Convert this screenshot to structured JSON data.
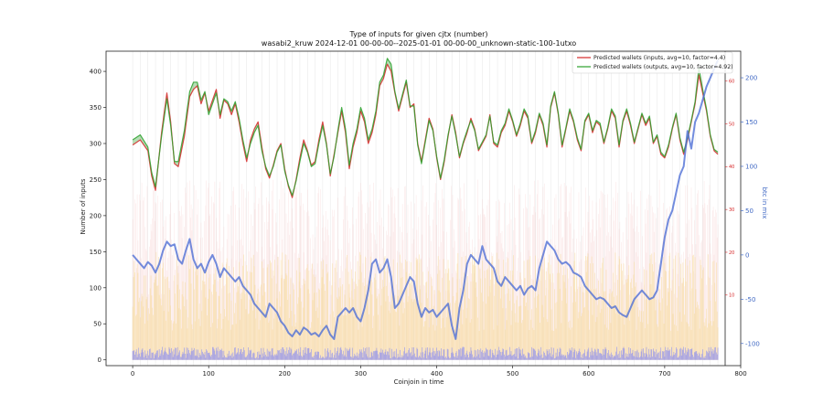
{
  "chart_data": {
    "type": "line",
    "title": "Type of inputs for given cjtx (number)",
    "subtitle": "wasabi2_kruw 2024-12-01 00-00-00--2025-01-01 00-00-00_unknown-static-100-1utxo",
    "xlabel": "Coinjoin in time",
    "ylabel": "Number of inputs",
    "ylabel_right": "btc in mix",
    "xlim": [
      -35,
      800
    ],
    "ylim": [
      -8,
      428
    ],
    "ylim_right_red": [
      -6.5,
      67
    ],
    "ylim_right_blue": [
      -125,
      230
    ],
    "x_ticks": [
      0,
      100,
      200,
      300,
      400,
      500,
      600,
      700,
      800
    ],
    "y_ticks": [
      0,
      50,
      100,
      150,
      200,
      250,
      300,
      350,
      400
    ],
    "red_axis_ticks": [
      10,
      20,
      30,
      40,
      50,
      60
    ],
    "blue_axis_ticks": [
      -100,
      -50,
      0,
      50,
      100,
      150,
      200
    ],
    "grid": "vertical lines",
    "legend_position": "top-right",
    "series": [
      {
        "name": "Predicted wallets (inputs, avg=10, factor=4.4)",
        "color": "#d62728",
        "axis": "left",
        "x": [
          0,
          10,
          20,
          25,
          30,
          38,
          45,
          50,
          55,
          60,
          68,
          75,
          80,
          85,
          90,
          95,
          100,
          105,
          110,
          115,
          120,
          125,
          130,
          135,
          140,
          145,
          150,
          155,
          160,
          165,
          170,
          175,
          180,
          185,
          190,
          195,
          200,
          205,
          210,
          215,
          220,
          225,
          230,
          235,
          240,
          245,
          250,
          255,
          260,
          265,
          270,
          275,
          280,
          285,
          290,
          295,
          300,
          305,
          310,
          315,
          320,
          325,
          330,
          335,
          340,
          345,
          350,
          355,
          360,
          365,
          370,
          375,
          380,
          385,
          390,
          395,
          400,
          405,
          410,
          415,
          420,
          425,
          430,
          435,
          440,
          445,
          450,
          455,
          460,
          465,
          470,
          475,
          480,
          485,
          490,
          495,
          500,
          505,
          510,
          515,
          520,
          525,
          530,
          535,
          540,
          545,
          550,
          555,
          560,
          565,
          570,
          575,
          580,
          585,
          590,
          595,
          600,
          605,
          610,
          615,
          620,
          625,
          630,
          635,
          640,
          645,
          650,
          655,
          660,
          665,
          670,
          675,
          680,
          685,
          690,
          695,
          700,
          705,
          710,
          715,
          720,
          725,
          730,
          735,
          740,
          745,
          750,
          755,
          760,
          765,
          770
        ],
        "values": [
          298,
          305,
          290,
          255,
          235,
          315,
          370,
          330,
          272,
          268,
          310,
          365,
          375,
          380,
          355,
          370,
          345,
          360,
          375,
          335,
          360,
          355,
          340,
          355,
          330,
          300,
          275,
          305,
          320,
          330,
          295,
          265,
          252,
          270,
          290,
          300,
          265,
          240,
          225,
          250,
          280,
          305,
          290,
          270,
          275,
          305,
          330,
          300,
          255,
          285,
          315,
          345,
          315,
          265,
          295,
          315,
          345,
          330,
          300,
          315,
          340,
          380,
          390,
          410,
          400,
          370,
          345,
          365,
          385,
          350,
          355,
          300,
          275,
          305,
          335,
          320,
          280,
          250,
          275,
          310,
          340,
          315,
          280,
          300,
          315,
          335,
          320,
          290,
          300,
          310,
          340,
          300,
          295,
          315,
          325,
          345,
          330,
          310,
          325,
          345,
          335,
          300,
          315,
          340,
          325,
          295,
          350,
          370,
          340,
          295,
          320,
          345,
          330,
          305,
          290,
          330,
          340,
          315,
          330,
          325,
          300,
          320,
          345,
          335,
          295,
          330,
          345,
          325,
          300,
          320,
          340,
          325,
          335,
          300,
          310,
          285,
          280,
          295,
          320,
          340,
          305,
          285,
          305,
          330,
          355,
          395,
          370,
          345,
          310,
          290,
          285
        ],
        "markers": "none"
      },
      {
        "name": "Predicted wallets (outputs, avg=10, factor=4.92)",
        "color": "#2ca02c",
        "axis": "left",
        "x": [
          0,
          10,
          20,
          25,
          30,
          38,
          45,
          50,
          55,
          60,
          68,
          75,
          80,
          85,
          90,
          95,
          100,
          105,
          110,
          115,
          120,
          125,
          130,
          135,
          140,
          145,
          150,
          155,
          160,
          165,
          170,
          175,
          180,
          185,
          190,
          195,
          200,
          205,
          210,
          215,
          220,
          225,
          230,
          235,
          240,
          245,
          250,
          255,
          260,
          265,
          270,
          275,
          280,
          285,
          290,
          295,
          300,
          305,
          310,
          315,
          320,
          325,
          330,
          335,
          340,
          345,
          350,
          355,
          360,
          365,
          370,
          375,
          380,
          385,
          390,
          395,
          400,
          405,
          410,
          415,
          420,
          425,
          430,
          435,
          440,
          445,
          450,
          455,
          460,
          465,
          470,
          475,
          480,
          485,
          490,
          495,
          500,
          505,
          510,
          515,
          520,
          525,
          530,
          535,
          540,
          545,
          550,
          555,
          560,
          565,
          570,
          575,
          580,
          585,
          590,
          595,
          600,
          605,
          610,
          615,
          620,
          625,
          630,
          635,
          640,
          645,
          650,
          655,
          660,
          665,
          670,
          675,
          680,
          685,
          690,
          695,
          700,
          705,
          710,
          715,
          720,
          725,
          730,
          735,
          740,
          745,
          750,
          755,
          760,
          765,
          770
        ],
        "values": [
          305,
          312,
          295,
          260,
          240,
          310,
          362,
          325,
          275,
          275,
          318,
          372,
          385,
          385,
          360,
          372,
          340,
          355,
          370,
          340,
          362,
          358,
          345,
          358,
          335,
          305,
          280,
          300,
          315,
          325,
          290,
          268,
          255,
          268,
          288,
          298,
          262,
          242,
          228,
          248,
          275,
          300,
          288,
          268,
          272,
          300,
          325,
          298,
          258,
          282,
          318,
          350,
          320,
          270,
          300,
          320,
          350,
          335,
          305,
          320,
          345,
          385,
          395,
          418,
          410,
          372,
          348,
          368,
          388,
          352,
          352,
          298,
          272,
          302,
          332,
          318,
          282,
          252,
          278,
          312,
          338,
          312,
          282,
          302,
          318,
          332,
          318,
          292,
          302,
          312,
          338,
          302,
          298,
          318,
          328,
          348,
          332,
          312,
          328,
          348,
          338,
          302,
          318,
          342,
          328,
          298,
          352,
          372,
          342,
          298,
          322,
          348,
          332,
          308,
          292,
          332,
          342,
          318,
          332,
          328,
          302,
          322,
          348,
          338,
          298,
          332,
          348,
          328,
          302,
          322,
          342,
          328,
          338,
          302,
          312,
          288,
          282,
          298,
          322,
          342,
          308,
          288,
          308,
          332,
          358,
          405,
          375,
          348,
          312,
          292,
          288
        ],
        "markers": "none"
      },
      {
        "name": "btc in mix",
        "color": "#4f6fd6",
        "axis": "right-blue",
        "x": [
          0,
          5,
          10,
          15,
          20,
          25,
          30,
          35,
          40,
          45,
          50,
          55,
          60,
          65,
          70,
          75,
          80,
          85,
          90,
          95,
          100,
          105,
          110,
          115,
          120,
          125,
          130,
          135,
          140,
          145,
          150,
          155,
          160,
          165,
          170,
          175,
          180,
          185,
          190,
          195,
          200,
          205,
          210,
          215,
          220,
          225,
          230,
          235,
          240,
          245,
          250,
          255,
          260,
          265,
          270,
          275,
          280,
          285,
          290,
          295,
          300,
          305,
          310,
          315,
          320,
          325,
          330,
          335,
          340,
          345,
          350,
          355,
          360,
          365,
          370,
          375,
          380,
          385,
          390,
          395,
          400,
          405,
          410,
          415,
          420,
          425,
          430,
          435,
          440,
          445,
          450,
          455,
          460,
          465,
          470,
          475,
          480,
          485,
          490,
          495,
          500,
          505,
          510,
          515,
          520,
          525,
          530,
          535,
          540,
          545,
          550,
          555,
          560,
          565,
          570,
          575,
          580,
          585,
          590,
          595,
          600,
          605,
          610,
          615,
          620,
          625,
          630,
          635,
          640,
          645,
          650,
          655,
          660,
          665,
          670,
          675,
          680,
          685,
          690,
          695,
          700,
          705,
          710,
          715,
          720,
          725,
          730,
          735,
          740,
          745,
          750,
          755,
          760,
          765,
          770
        ],
        "values": [
          0,
          -5,
          -10,
          -15,
          -8,
          -12,
          -20,
          -10,
          5,
          15,
          10,
          12,
          -5,
          -10,
          5,
          18,
          -5,
          -15,
          -10,
          -20,
          -8,
          0,
          -10,
          -25,
          -15,
          -20,
          -25,
          -30,
          -25,
          -35,
          -40,
          -45,
          -55,
          -60,
          -65,
          -70,
          -55,
          -60,
          -65,
          -75,
          -80,
          -88,
          -92,
          -85,
          -90,
          -82,
          -85,
          -90,
          -88,
          -92,
          -85,
          -80,
          -90,
          -95,
          -70,
          -65,
          -60,
          -65,
          -60,
          -70,
          -75,
          -60,
          -40,
          -10,
          -5,
          -20,
          -15,
          -5,
          -25,
          -60,
          -55,
          -45,
          -35,
          -25,
          -30,
          -55,
          -70,
          -60,
          -65,
          -62,
          -70,
          -65,
          -60,
          -55,
          -80,
          -95,
          -60,
          -40,
          -10,
          0,
          -5,
          -10,
          10,
          -5,
          -10,
          -15,
          -30,
          -35,
          -25,
          -30,
          -35,
          -40,
          -35,
          -45,
          -38,
          -35,
          -40,
          -15,
          0,
          15,
          10,
          5,
          -5,
          -10,
          -8,
          -12,
          -20,
          -22,
          -25,
          -35,
          -40,
          -45,
          -50,
          -48,
          -50,
          -55,
          -60,
          -58,
          -65,
          -68,
          -70,
          -60,
          -50,
          -45,
          -40,
          -45,
          -50,
          -48,
          -40,
          -10,
          20,
          40,
          50,
          70,
          90,
          100,
          140,
          120,
          150,
          160,
          175,
          190,
          200,
          210,
          220
        ],
        "markers": "none"
      }
    ]
  }
}
